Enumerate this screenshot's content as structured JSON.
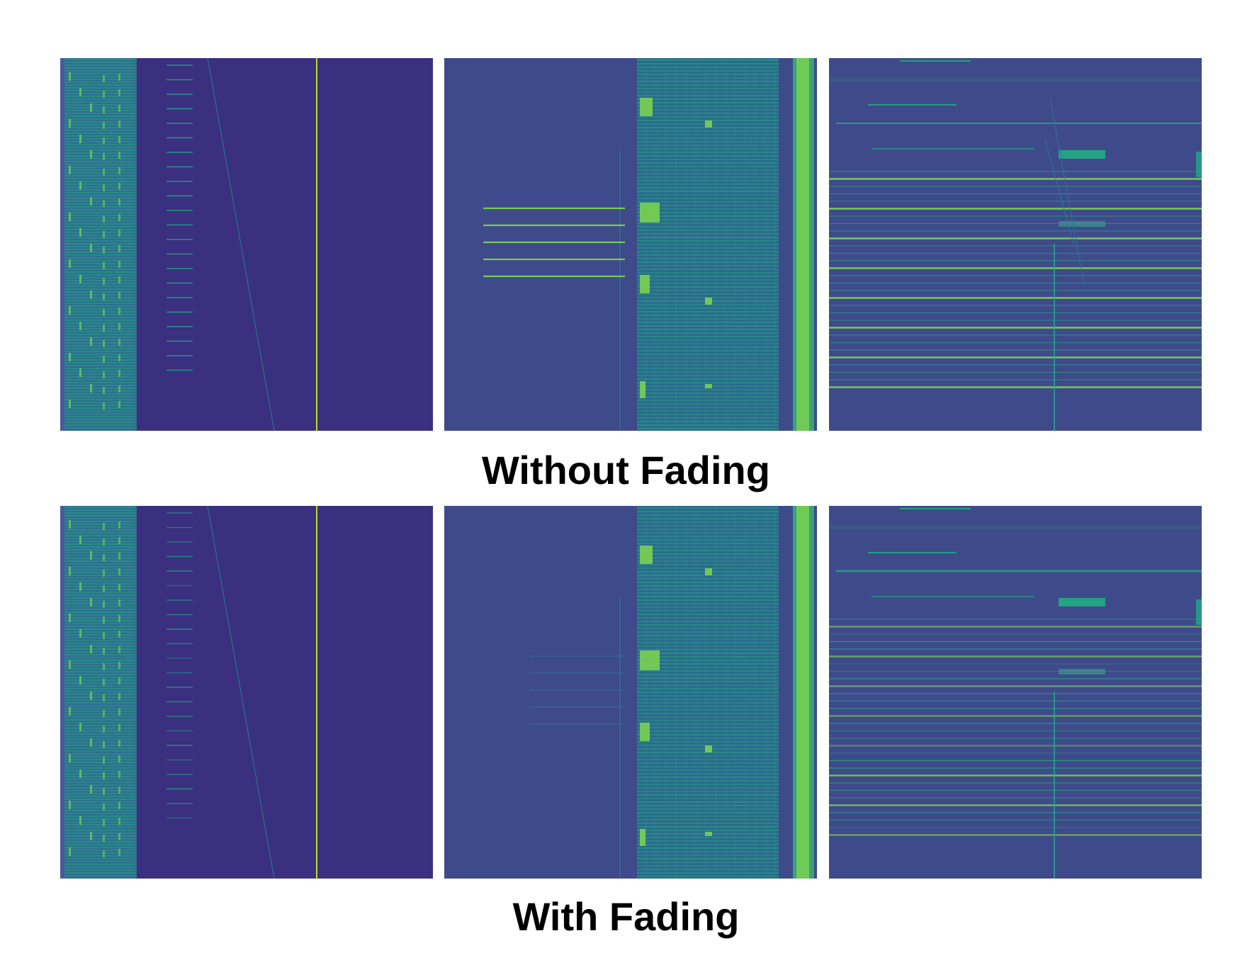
{
  "captions": {
    "top": "Without Fading",
    "bottom": "With Fading"
  },
  "colors": {
    "background_dark": "#3b2f80",
    "background_medium": "#3f4a8a",
    "signal_low": "#2a788e",
    "signal_mid": "#22a884",
    "signal_high": "#7ad151",
    "signal_peak": "#c8e020",
    "caption_text": "#000000"
  },
  "rows": [
    {
      "label_key": "captions.top",
      "fading": false,
      "panels": [
        "spectrogram-1",
        "spectrogram-2",
        "spectrogram-3"
      ]
    },
    {
      "label_key": "captions.bottom",
      "fading": true,
      "panels": [
        "spectrogram-1",
        "spectrogram-2",
        "spectrogram-3"
      ]
    }
  ]
}
